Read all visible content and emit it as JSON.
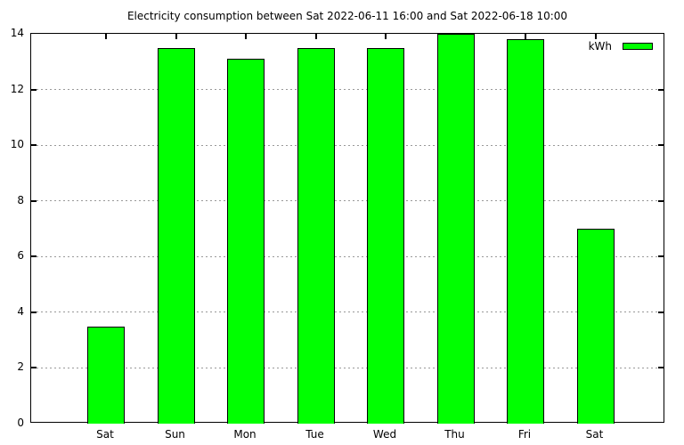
{
  "chart_data": {
    "type": "bar",
    "title": "Electricity consumption between Sat 2022-06-11 16:00 and Sat 2022-06-18 10:00",
    "categories": [
      "Sat",
      "Sun",
      "Mon",
      "Tue",
      "Wed",
      "Thu",
      "Fri",
      "Sat"
    ],
    "values": [
      3.5,
      13.5,
      13.1,
      13.5,
      13.5,
      14.0,
      13.8,
      7.0
    ],
    "legend": {
      "label": "kWh",
      "position": "top-right-inside"
    },
    "xlabel": "",
    "ylabel": "",
    "ylim": [
      0,
      14
    ],
    "y_ticks": [
      0,
      2,
      4,
      6,
      8,
      10,
      12,
      14
    ],
    "grid": "horizontal-dotted",
    "colors": {
      "bar_fill": "#00ff00",
      "bar_border": "#000000",
      "grid_line": "#999999",
      "axis": "#000000",
      "background": "#ffffff",
      "text": "#000000"
    }
  }
}
